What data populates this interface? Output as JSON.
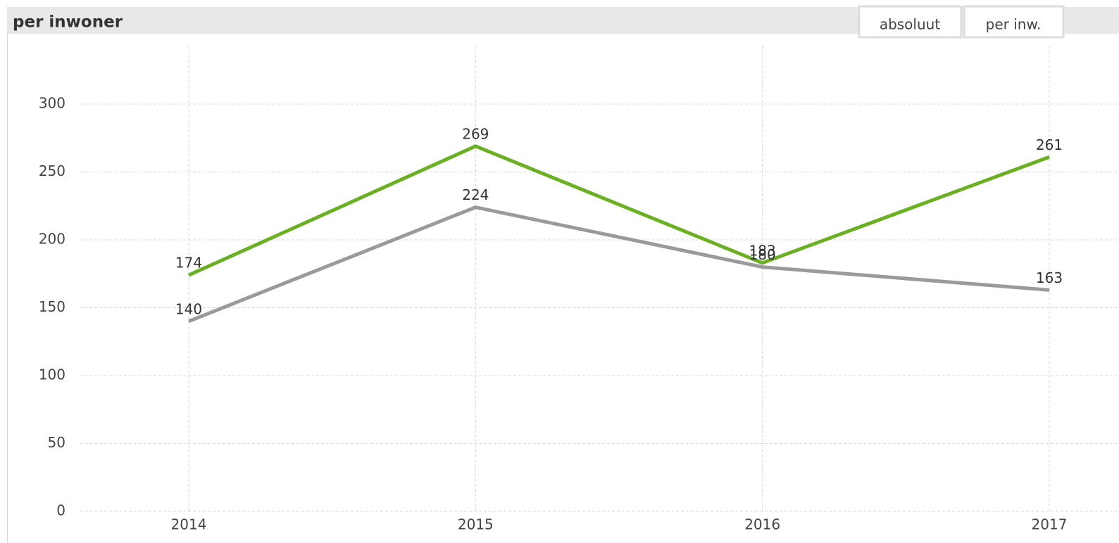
{
  "chart_data": {
    "type": "line",
    "title": "per inwoner",
    "buttons": [
      "absoluut",
      "per inw."
    ],
    "categories": [
      "2014",
      "2015",
      "2016",
      "2017"
    ],
    "series": [
      {
        "color": "#6ab023",
        "values": [
          174,
          269,
          183,
          261
        ]
      },
      {
        "color": "#9a9a9a",
        "values": [
          140,
          224,
          180,
          163
        ]
      }
    ],
    "ylim": [
      0,
      300
    ],
    "yticks": [
      0,
      50,
      100,
      150,
      200,
      250,
      300
    ],
    "grid": true,
    "data_labels": true
  }
}
